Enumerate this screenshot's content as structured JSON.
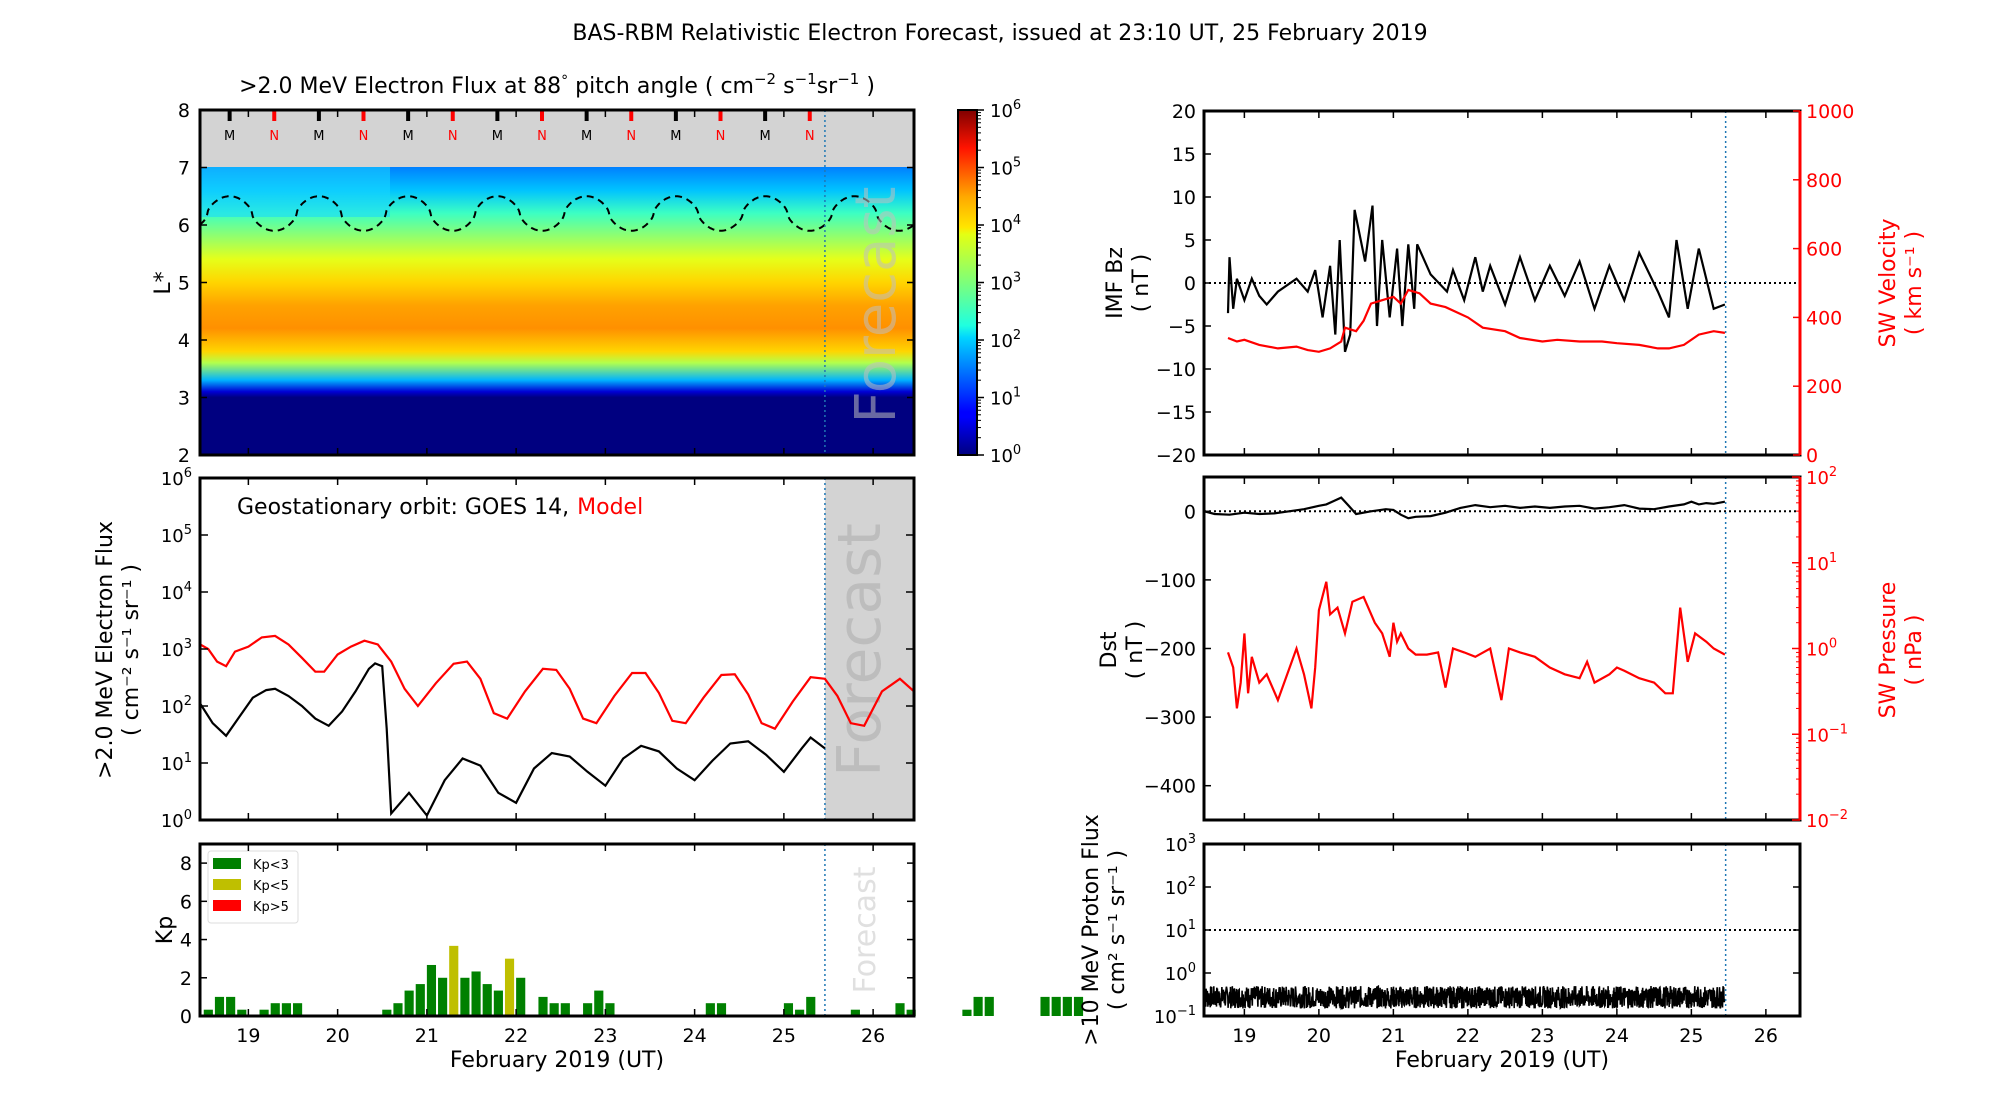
{
  "figure_title": "BAS-RBM Relativistic Electron Forecast, issued at 23:10 UT, 25 February 2019",
  "chart_data": [
    {
      "id": "flux-map",
      "type": "heatmap",
      "title": ">2.0 MeV Electron Flux at 88° pitch angle ( cm⁻² s⁻¹ sr⁻¹ )",
      "title_parts": {
        "main": ">2.0 MeV Electron Flux at 88",
        "deg": "°",
        "tail": " pitch angle ( cm",
        "sup1": "−2",
        "s": " s",
        "sup2": "−1",
        "sr": "sr",
        "sup3": "−1",
        "close": " )"
      },
      "ylabel": "L*",
      "ylim": [
        2,
        8
      ],
      "yticks": [
        2,
        3,
        4,
        5,
        6,
        7,
        8
      ],
      "xlim": [
        18.458,
        26.458
      ],
      "forecast_start": 25.46,
      "forecast_label": "Forecast",
      "no_data_above_L": 7,
      "mn_markers": {
        "labels": [
          "M",
          "N",
          "M",
          "N",
          "M",
          "N",
          "M",
          "N",
          "M",
          "N",
          "M",
          "N",
          "M",
          "N"
        ],
        "x": [
          18.79,
          19.29,
          19.79,
          20.29,
          20.79,
          21.29,
          21.79,
          22.29,
          22.79,
          23.29,
          23.79,
          24.29,
          24.79,
          25.29
        ],
        "colors": {
          "M": "#000000",
          "N": "#ff0000"
        }
      },
      "colorbar": {
        "scale": "log",
        "min": 1,
        "max": 1000000,
        "tick_labels": [
          "10^0",
          "10^1",
          "10^2",
          "10^3",
          "10^4",
          "10^5",
          "10^6"
        ],
        "colormap": "jet"
      },
      "flux_profile_by_L": {
        "L": [
          2.0,
          3.0,
          3.1,
          3.3,
          3.6,
          3.8,
          4.2,
          4.6,
          5.0,
          5.4,
          5.8,
          6.2,
          6.6,
          7.0
        ],
        "log10_flux": [
          0,
          0,
          0.5,
          1.8,
          3.3,
          4.0,
          4.4,
          4.3,
          4.0,
          3.6,
          3.1,
          2.6,
          1.9,
          1.5
        ]
      },
      "geo_orbit_dashed_line": {
        "period_days": 1,
        "L_min": 5.9,
        "L_max": 6.5
      }
    },
    {
      "id": "geo-flux",
      "type": "line",
      "annotation": {
        "prefix": "Geostationary orbit:   GOES 14,",
        "model": "Model"
      },
      "ylabel": ">2.0 MeV Electron Flux",
      "ylabel2": "( cm⁻² s⁻¹ sr⁻¹ )",
      "yscale": "log",
      "ylim": [
        1,
        1000000
      ],
      "ytick_labels": [
        "10^0",
        "10^1",
        "10^2",
        "10^3",
        "10^4",
        "10^5",
        "10^6"
      ],
      "xlim": [
        18.458,
        26.458
      ],
      "forecast_start": 25.46,
      "forecast_label": "Forecast",
      "series": [
        {
          "name": "GOES 14",
          "color": "#000000",
          "x": [
            18.46,
            18.6,
            18.75,
            18.9,
            19.05,
            19.2,
            19.3,
            19.45,
            19.6,
            19.75,
            19.9,
            20.05,
            20.2,
            20.35,
            20.42,
            20.5,
            20.55,
            20.6,
            20.8,
            21.0,
            21.2,
            21.4,
            21.6,
            21.8,
            22.0,
            22.2,
            22.4,
            22.6,
            22.8,
            23.0,
            23.2,
            23.4,
            23.6,
            23.8,
            24.0,
            24.2,
            24.4,
            24.6,
            24.8,
            25.0,
            25.2,
            25.3,
            25.46
          ],
          "y": [
            110,
            50,
            30,
            65,
            140,
            190,
            200,
            150,
            100,
            60,
            45,
            80,
            180,
            450,
            560,
            500,
            40,
            1.3,
            3,
            1.2,
            5,
            12,
            9,
            3,
            2,
            8,
            15,
            13,
            7,
            4,
            12,
            20,
            16,
            8,
            5,
            11,
            22,
            24,
            14,
            7,
            18,
            28,
            18
          ]
        },
        {
          "name": "Model",
          "color": "#ff0000",
          "x": [
            18.46,
            18.55,
            18.65,
            18.75,
            18.85,
            19.0,
            19.15,
            19.3,
            19.45,
            19.6,
            19.75,
            19.85,
            20.0,
            20.15,
            20.3,
            20.45,
            20.6,
            20.75,
            20.9,
            21.1,
            21.3,
            21.45,
            21.6,
            21.75,
            21.9,
            22.1,
            22.3,
            22.45,
            22.6,
            22.75,
            22.9,
            23.1,
            23.3,
            23.45,
            23.6,
            23.75,
            23.9,
            24.1,
            24.3,
            24.45,
            24.6,
            24.75,
            24.9,
            25.1,
            25.3,
            25.46,
            25.6,
            25.75,
            25.9,
            26.1,
            26.3,
            26.458
          ],
          "y": [
            1200,
            1000,
            600,
            500,
            900,
            1100,
            1600,
            1700,
            1200,
            700,
            400,
            400,
            800,
            1100,
            1400,
            1200,
            600,
            200,
            100,
            250,
            550,
            600,
            300,
            75,
            60,
            180,
            450,
            430,
            200,
            60,
            50,
            150,
            380,
            380,
            170,
            55,
            50,
            140,
            350,
            360,
            160,
            50,
            40,
            120,
            320,
            300,
            150,
            50,
            45,
            180,
            300,
            180
          ]
        }
      ]
    },
    {
      "id": "kp",
      "type": "bar",
      "ylabel": "Kp",
      "ylim": [
        0,
        9
      ],
      "yticks": [
        0,
        2,
        4,
        6,
        8
      ],
      "xlabel": "February 2019 (UT)",
      "xlim": [
        18.458,
        26.458
      ],
      "xtick_labels": [
        "19",
        "20",
        "21",
        "22",
        "23",
        "24",
        "25",
        "26"
      ],
      "xticks": [
        19,
        20,
        21,
        22,
        23,
        24,
        25,
        26
      ],
      "forecast_start": 25.46,
      "forecast_label": "Forecast",
      "bin_width_days": 0.125,
      "first_bin_start": 18.5,
      "legend": [
        {
          "label": "Kp<3",
          "color": "#008000"
        },
        {
          "label": "Kp<5",
          "color": "#bfbf00"
        },
        {
          "label": "Kp>5",
          "color": "#ff0000"
        }
      ],
      "legend_position": "top-left",
      "values": [
        0.33,
        1,
        1,
        0.33,
        0,
        0.33,
        0.67,
        0.67,
        0.67,
        0,
        0,
        0,
        0,
        0,
        0,
        0,
        0.33,
        0.67,
        1.33,
        1.67,
        2.67,
        2,
        3.67,
        2,
        2.33,
        1.67,
        1.33,
        3,
        2,
        0,
        1,
        0.67,
        0.67,
        0,
        0.67,
        1.33,
        0.67,
        0,
        0,
        0,
        0,
        0,
        0,
        0,
        0,
        0.67,
        0.67,
        0,
        0,
        0,
        0,
        0,
        0.67,
        0.33,
        1,
        0,
        0,
        0,
        0.33,
        0,
        0,
        0,
        0.67,
        0.33,
        0,
        0,
        0,
        0,
        0.33,
        1,
        1,
        0,
        0,
        0,
        0,
        1,
        1,
        1,
        1
      ]
    },
    {
      "id": "imf-velocity",
      "type": "line",
      "ylabel": "IMF Bz",
      "ylabel2": "( nT )",
      "ylim": [
        -20,
        20
      ],
      "yticks": [
        -20,
        -15,
        -10,
        -5,
        0,
        5,
        10,
        15,
        20
      ],
      "ylabel_right": "SW Velocity",
      "ylabel_right2": "( km s⁻¹ )",
      "ylim_right": [
        0,
        1000
      ],
      "yticks_right": [
        0,
        200,
        400,
        600,
        800,
        1000
      ],
      "xlim": [
        18.458,
        26.458
      ],
      "forecast_start": 25.46,
      "zero_line": 0,
      "series": [
        {
          "name": "IMF Bz",
          "color": "#000000",
          "x": [
            18.78,
            18.8,
            18.85,
            18.9,
            19.0,
            19.1,
            19.2,
            19.3,
            19.45,
            19.7,
            19.85,
            19.95,
            20.05,
            20.15,
            20.22,
            20.28,
            20.35,
            20.42,
            20.48,
            20.62,
            20.72,
            20.78,
            20.85,
            20.95,
            21.05,
            21.12,
            21.2,
            21.28,
            21.32,
            21.5,
            21.72,
            21.8,
            21.95,
            22.1,
            22.2,
            22.3,
            22.5,
            22.7,
            22.9,
            23.1,
            23.3,
            23.5,
            23.7,
            23.9,
            24.1,
            24.3,
            24.55,
            24.7,
            24.8,
            24.95,
            25.1,
            25.3,
            25.45
          ],
          "y": [
            -3.5,
            3,
            -3,
            0.5,
            -2,
            0.5,
            -1.5,
            -2.5,
            -1,
            0.5,
            -1,
            1.5,
            -4,
            2,
            -6,
            5,
            -8,
            -6,
            8.5,
            2.5,
            9,
            -5,
            5,
            -4,
            4,
            -5,
            4.5,
            -3,
            4.5,
            1,
            -1,
            1.5,
            -2,
            3,
            -1,
            2,
            -2.5,
            3,
            -2,
            2,
            -1.5,
            2.5,
            -3,
            2,
            -2,
            3.5,
            -1,
            -4,
            5,
            -3,
            4,
            -3,
            -2.5
          ]
        },
        {
          "name": "SW Velocity",
          "color": "#ff0000",
          "axis": "right",
          "x": [
            18.78,
            18.9,
            19.0,
            19.2,
            19.45,
            19.7,
            19.85,
            20.0,
            20.15,
            20.3,
            20.35,
            20.5,
            20.6,
            20.7,
            20.85,
            21.0,
            21.1,
            21.2,
            21.35,
            21.5,
            21.7,
            22.0,
            22.2,
            22.5,
            22.7,
            23.0,
            23.2,
            23.5,
            23.8,
            24.0,
            24.3,
            24.55,
            24.7,
            24.9,
            25.1,
            25.3,
            25.45
          ],
          "y": [
            340,
            330,
            335,
            320,
            310,
            315,
            305,
            300,
            310,
            330,
            370,
            360,
            390,
            440,
            450,
            460,
            440,
            480,
            470,
            440,
            430,
            400,
            370,
            360,
            340,
            330,
            335,
            330,
            330,
            325,
            320,
            310,
            310,
            320,
            350,
            360,
            355
          ]
        }
      ]
    },
    {
      "id": "dst-pressure",
      "type": "line",
      "ylabel": "Dst",
      "ylabel2": "( nT )",
      "ylim": [
        -450,
        50
      ],
      "yticks": [
        -400,
        -300,
        -200,
        -100,
        0
      ],
      "ylabel_right": "SW Pressure",
      "ylabel_right2": "( nPa )",
      "yscale_right": "log",
      "ylim_right": [
        0.01,
        100
      ],
      "ytick_labels_right": [
        "10^-2",
        "10^-1",
        "10^0",
        "10^1",
        "10^2"
      ],
      "xlim": [
        18.458,
        26.458
      ],
      "forecast_start": 25.46,
      "zero_line": 0,
      "series": [
        {
          "name": "Dst",
          "color": "#000000",
          "x": [
            18.46,
            18.6,
            18.8,
            19.0,
            19.2,
            19.4,
            19.6,
            19.8,
            20.0,
            20.1,
            20.2,
            20.3,
            20.4,
            20.5,
            20.7,
            20.9,
            21.0,
            21.1,
            21.2,
            21.3,
            21.5,
            21.7,
            21.9,
            22.1,
            22.3,
            22.5,
            22.7,
            22.9,
            23.1,
            23.3,
            23.5,
            23.7,
            23.9,
            24.1,
            24.3,
            24.5,
            24.7,
            24.9,
            25.0,
            25.1,
            25.2,
            25.3,
            25.45
          ],
          "y": [
            0,
            -4,
            -5,
            -2,
            -4,
            -3,
            0,
            3,
            8,
            10,
            15,
            20,
            8,
            -4,
            0,
            3,
            2,
            -5,
            -10,
            -8,
            -7,
            -2,
            5,
            9,
            6,
            8,
            5,
            7,
            5,
            7,
            8,
            4,
            6,
            9,
            4,
            3,
            7,
            10,
            14,
            10,
            12,
            11,
            14
          ]
        },
        {
          "name": "SW Pressure",
          "color": "#ff0000",
          "axis": "right",
          "x": [
            18.78,
            18.85,
            18.9,
            18.95,
            19.0,
            19.05,
            19.1,
            19.2,
            19.3,
            19.45,
            19.7,
            19.8,
            19.9,
            19.95,
            20.0,
            20.1,
            20.15,
            20.25,
            20.35,
            20.45,
            20.6,
            20.75,
            20.85,
            20.95,
            21.0,
            21.05,
            21.1,
            21.2,
            21.3,
            21.45,
            21.6,
            21.7,
            21.8,
            21.95,
            22.1,
            22.3,
            22.45,
            22.55,
            22.7,
            22.9,
            23.1,
            23.3,
            23.5,
            23.6,
            23.7,
            23.9,
            24.0,
            24.1,
            24.3,
            24.5,
            24.65,
            24.75,
            24.85,
            24.95,
            25.05,
            25.2,
            25.3,
            25.45
          ],
          "y": [
            0.9,
            0.6,
            0.2,
            0.4,
            1.5,
            0.3,
            0.8,
            0.4,
            0.5,
            0.25,
            1.0,
            0.5,
            0.2,
            0.6,
            2.8,
            6.0,
            2.5,
            3.0,
            1.5,
            3.5,
            4.0,
            2.0,
            1.5,
            0.8,
            2.0,
            1.2,
            1.5,
            1.0,
            0.85,
            0.85,
            0.9,
            0.35,
            1.0,
            0.9,
            0.8,
            1.0,
            0.25,
            1.0,
            0.9,
            0.8,
            0.6,
            0.5,
            0.45,
            0.7,
            0.4,
            0.5,
            0.6,
            0.55,
            0.45,
            0.4,
            0.3,
            0.3,
            3.0,
            0.7,
            1.5,
            1.2,
            1.0,
            0.85
          ]
        }
      ]
    },
    {
      "id": "proton-flux",
      "type": "line",
      "ylabel": ">10 MeV Proton Flux",
      "ylabel2": "( cm² s⁻¹ sr⁻¹ )",
      "yscale": "log",
      "ylim": [
        0.1,
        1000
      ],
      "ytick_labels": [
        "10^-1",
        "10^0",
        "10^1",
        "10^2",
        "10^3"
      ],
      "xlabel": "February 2019 (UT)",
      "xlim": [
        18.458,
        26.458
      ],
      "xtick_labels": [
        "19",
        "20",
        "21",
        "22",
        "23",
        "24",
        "25",
        "26"
      ],
      "xticks": [
        19,
        20,
        21,
        22,
        23,
        24,
        25,
        26
      ],
      "forecast_start": 25.46,
      "threshold_line": 10,
      "series": [
        {
          "name": ">10 MeV Proton Flux",
          "color": "#000000",
          "x_start": 18.458,
          "x_end": 25.45,
          "typical_range": [
            0.15,
            0.5
          ]
        }
      ]
    }
  ]
}
